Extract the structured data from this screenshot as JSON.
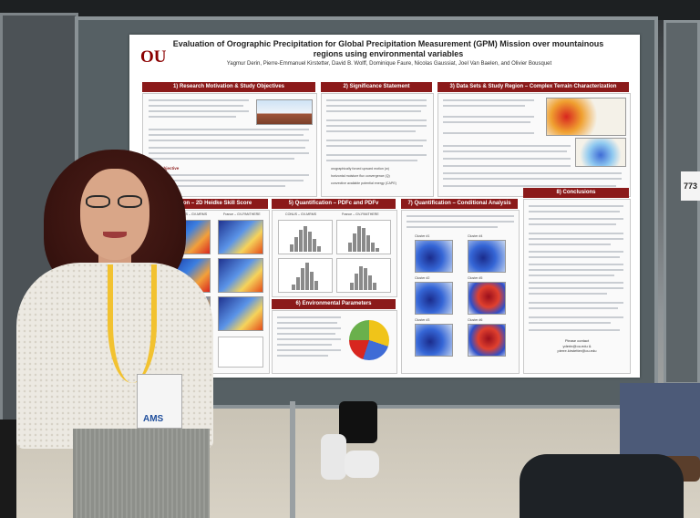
{
  "poster": {
    "logo_text": "OU",
    "title": "Evaluation of Orographic Precipitation for Global Precipitation Measurement (GPM) Mission over mountainous regions using environmental variables",
    "authors": "Yagmur Derin, Pierre-Emmanuel Kirstetter, David B. Wolff, Dominique Faure, Nicolas Gaussiat, Joel Van Baelen, and Olivier Bousquet",
    "sections": {
      "s1": "1) Research Motivation & Study Objectives",
      "s2": "2) Significance Statement",
      "s3": "3) Data Sets & Study Region – Complex Terrain Characterization",
      "s4": "4) Detection – 2D Heidke Skill Score",
      "s5": "5) Quantification – PDFc and PDFv",
      "s6": "6) Environmental Parameters",
      "s7": "7) Quantification – Conditional Analysis",
      "s8": "8) Conclusions"
    },
    "s1_subhead": "Study objective",
    "s2_bullets": [
      "orographically forced upward motion (w)",
      "horizontal moisture flux convergence (Q)",
      "convective available potential energy (CAPE)"
    ],
    "s4_labels": [
      "CONUS – GV-MRMS",
      "France – GV-PANTHERE"
    ],
    "s5_labels": [
      "CONUS – GV-MRMS",
      "France – GV-PANTHERE"
    ],
    "s7_clusters": [
      "Cluster #1",
      "Cluster #2",
      "Cluster #3",
      "Cluster #4",
      "Cluster #5",
      "Cluster #6"
    ],
    "contact_label": "Please contact",
    "contact_emails": "yderin@ou.edu &\npierre.kirstetter@ou.edu"
  },
  "scene": {
    "board_number": "773",
    "badge_brand": "AMS",
    "lanyard_text": "AMS"
  }
}
